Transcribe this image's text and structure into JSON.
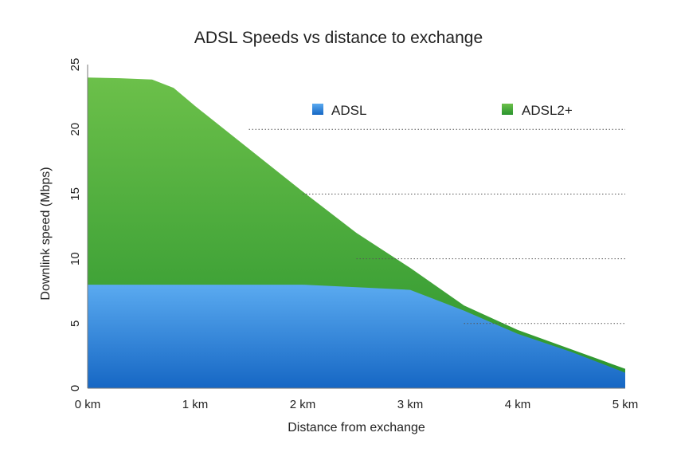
{
  "chart_data": {
    "type": "area",
    "title": "ADSL Speeds vs distance to exchange",
    "xlabel": "Distance from exchange",
    "ylabel": "Downlink speed (Mbps)",
    "x_unit": "km",
    "xlim": [
      0,
      5
    ],
    "ylim": [
      0,
      25
    ],
    "x_ticks": [
      "0 km",
      "1 km",
      "2 km",
      "3 km",
      "4 km",
      "5 km"
    ],
    "y_ticks": [
      "0",
      "5",
      "10",
      "15",
      "20",
      "25"
    ],
    "legend_position": "top-right, inside plot",
    "grid": "partial dotted horizontal lines",
    "series": [
      {
        "name": "ADSL",
        "color_top": "#5aaaf0",
        "color_bottom": "#1667c4",
        "x": [
          0,
          0.5,
          1,
          1.5,
          2,
          2.5,
          3,
          3.5,
          4,
          4.5,
          5
        ],
        "y": [
          8,
          8,
          8,
          8,
          8,
          7.8,
          7.6,
          6,
          4.2,
          2.8,
          1.2
        ]
      },
      {
        "name": "ADSL2+",
        "color_top": "#6cc04a",
        "color_bottom": "#2a942e",
        "x": [
          0,
          0.3,
          0.6,
          0.8,
          1,
          1.5,
          2,
          2.5,
          3,
          3.5,
          4,
          4.5,
          5
        ],
        "y": [
          24,
          23.95,
          23.85,
          23.2,
          21.8,
          18.5,
          15.2,
          12,
          9.3,
          6.4,
          4.5,
          3,
          1.5
        ]
      }
    ]
  }
}
